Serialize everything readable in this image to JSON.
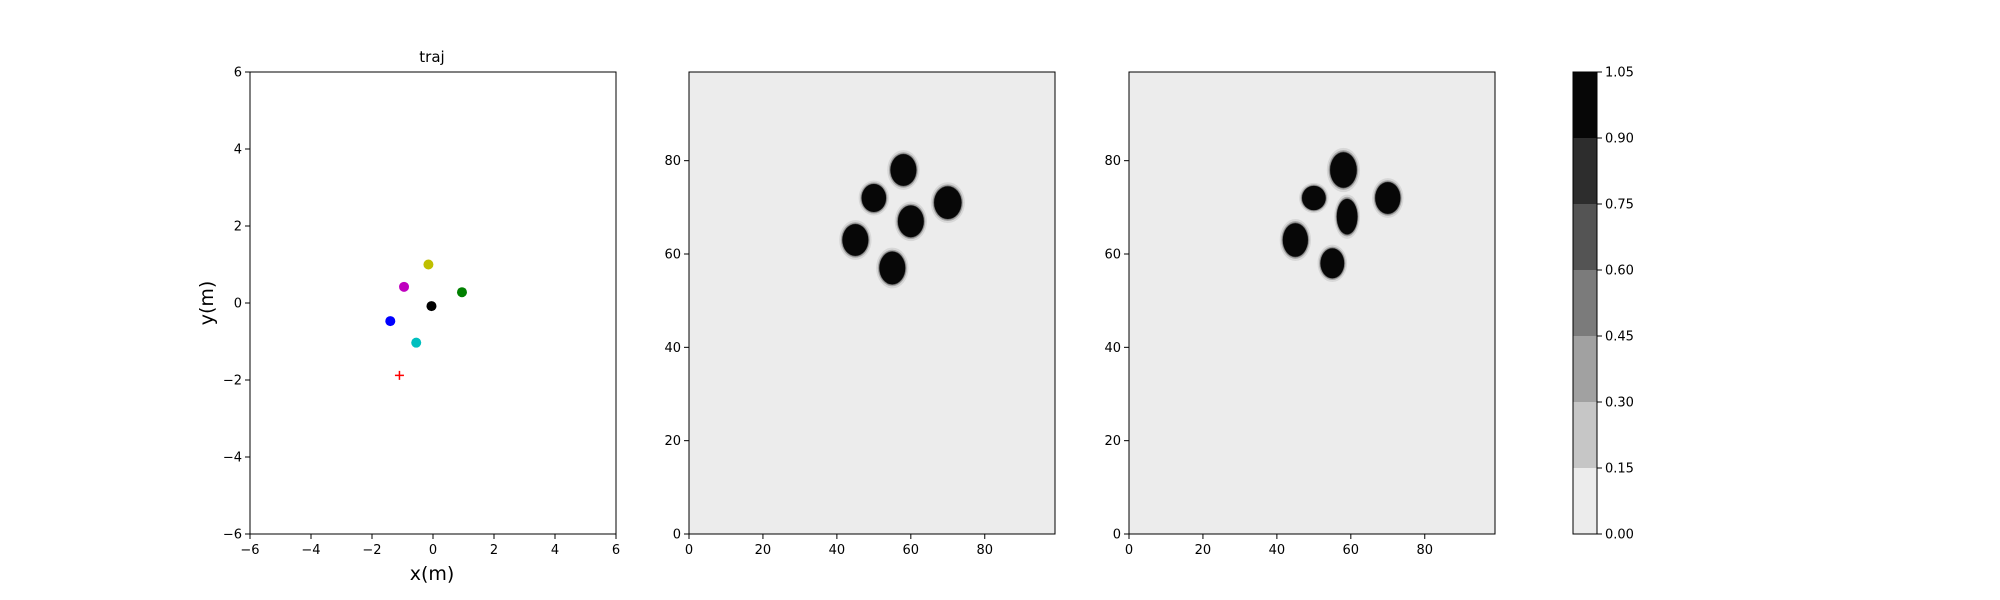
{
  "chart_data": [
    {
      "type": "scatter",
      "title": "traj",
      "xlabel": "x(m)",
      "ylabel": "y(m)",
      "xlim": [
        -6,
        6
      ],
      "ylim": [
        -6,
        6
      ],
      "xticks": [
        "−6",
        "−4",
        "−2",
        "0",
        "2",
        "4",
        "6"
      ],
      "yticks": [
        "−6",
        "−4",
        "−2",
        "0",
        "2",
        "4",
        "6"
      ],
      "grid": false,
      "points": [
        {
          "x": -0.15,
          "y": 1.0,
          "color": "#bfbf00",
          "marker": "circle"
        },
        {
          "x": -0.95,
          "y": 0.42,
          "color": "#bf00bf",
          "marker": "circle"
        },
        {
          "x": 0.95,
          "y": 0.28,
          "color": "#008000",
          "marker": "circle"
        },
        {
          "x": -0.05,
          "y": -0.08,
          "color": "#000000",
          "marker": "circle"
        },
        {
          "x": -1.4,
          "y": -0.47,
          "color": "#0000ff",
          "marker": "circle"
        },
        {
          "x": -0.55,
          "y": -1.03,
          "color": "#00bfbf",
          "marker": "circle"
        },
        {
          "x": -1.1,
          "y": -1.88,
          "color": "#ff0000",
          "marker": "plus"
        }
      ]
    },
    {
      "type": "heatmap",
      "xlim": [
        0,
        99
      ],
      "ylim": [
        0,
        99
      ],
      "xticks": [
        "0",
        "20",
        "40",
        "60",
        "80"
      ],
      "yticks": [
        "0",
        "20",
        "40",
        "60",
        "80"
      ],
      "background_value": 0.05,
      "blobs": [
        {
          "x": 58,
          "y": 78,
          "rx": 3.5,
          "ry": 3.4,
          "value": 1.0
        },
        {
          "x": 50,
          "y": 72,
          "rx": 3.3,
          "ry": 3.0,
          "value": 1.0
        },
        {
          "x": 70,
          "y": 71,
          "rx": 3.7,
          "ry": 3.5,
          "value": 1.0
        },
        {
          "x": 60,
          "y": 67,
          "rx": 3.5,
          "ry": 3.4,
          "value": 1.0
        },
        {
          "x": 45,
          "y": 63,
          "rx": 3.5,
          "ry": 3.4,
          "value": 1.0
        },
        {
          "x": 55,
          "y": 57,
          "rx": 3.5,
          "ry": 3.5,
          "value": 1.0
        }
      ]
    },
    {
      "type": "heatmap",
      "xlim": [
        0,
        99
      ],
      "ylim": [
        0,
        99
      ],
      "xticks": [
        "0",
        "20",
        "40",
        "60",
        "80"
      ],
      "yticks": [
        "0",
        "20",
        "40",
        "60",
        "80"
      ],
      "background_value": 0.05,
      "blobs": [
        {
          "x": 58,
          "y": 78,
          "rx": 3.6,
          "ry": 3.8,
          "value": 1.0
        },
        {
          "x": 50,
          "y": 72,
          "rx": 3.2,
          "ry": 2.6,
          "value": 0.95
        },
        {
          "x": 70,
          "y": 72,
          "rx": 3.4,
          "ry": 3.4,
          "value": 1.0
        },
        {
          "x": 59,
          "y": 68,
          "rx": 2.8,
          "ry": 3.8,
          "value": 0.95
        },
        {
          "x": 45,
          "y": 63,
          "rx": 3.4,
          "ry": 3.6,
          "value": 1.0
        },
        {
          "x": 55,
          "y": 58,
          "rx": 3.2,
          "ry": 3.2,
          "value": 1.0
        }
      ]
    }
  ],
  "colorbar": {
    "levels": [
      "0.00",
      "0.15",
      "0.30",
      "0.45",
      "0.60",
      "0.75",
      "0.90",
      "1.05"
    ],
    "colors": [
      "#ececec",
      "#c6c6c6",
      "#a1a1a1",
      "#7b7b7b",
      "#545454",
      "#2d2d2d",
      "#070707"
    ]
  }
}
